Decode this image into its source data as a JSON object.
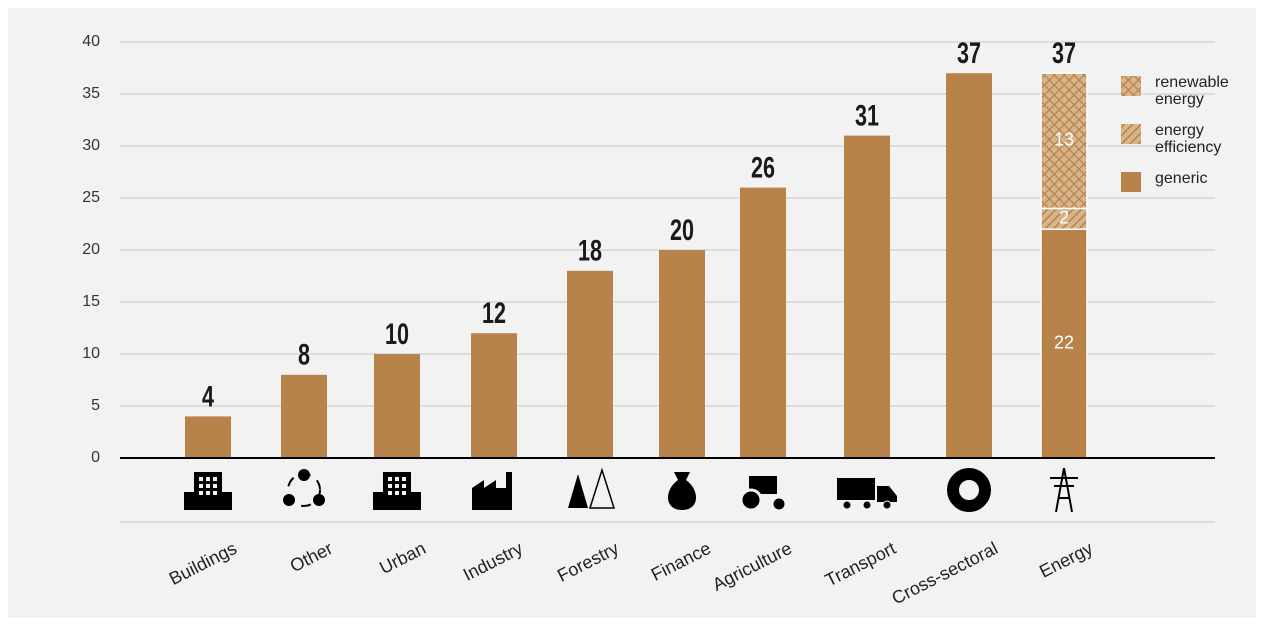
{
  "chart_data": {
    "type": "stacked_bar",
    "categories": [
      "Buildings",
      "Other",
      "Urban",
      "Industry",
      "Forestry",
      "Finance",
      "Agriculture",
      "Transport",
      "Cross-sectoral",
      "Energy"
    ],
    "series": [
      {
        "name": "generic",
        "color": "#b8834a",
        "pattern": "solid",
        "values": [
          4,
          8,
          10,
          12,
          18,
          20,
          26,
          31,
          37,
          22
        ]
      },
      {
        "name": "energy efficiency",
        "color": "#b8834a",
        "pattern": "hatch",
        "values": [
          null,
          null,
          null,
          null,
          null,
          null,
          null,
          null,
          null,
          2
        ]
      },
      {
        "name": "renewable energy",
        "color": "#b8834a",
        "pattern": "crosshatch",
        "values": [
          null,
          null,
          null,
          null,
          null,
          null,
          null,
          null,
          null,
          13
        ]
      }
    ],
    "totals": [
      4,
      8,
      10,
      12,
      18,
      20,
      26,
      31,
      37,
      37
    ],
    "ylim": [
      0,
      40
    ],
    "yticks": [
      0,
      5,
      10,
      15,
      20,
      25,
      30,
      35,
      40
    ],
    "grid": true,
    "legend": "top-right"
  }
}
